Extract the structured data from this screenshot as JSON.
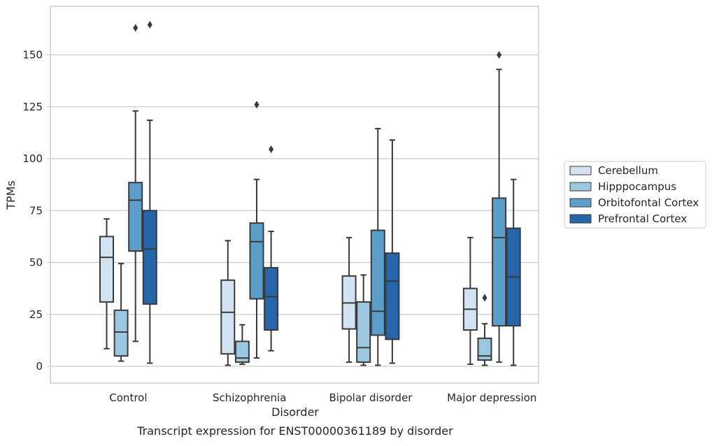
{
  "chart_data": {
    "type": "boxplot",
    "title": "",
    "caption": "Transcript expression for ENST00000361189 by disorder",
    "xlabel": "Disorder",
    "ylabel": "TPMs",
    "ylim": [
      -8,
      172
    ],
    "yticks": [
      0,
      25,
      50,
      75,
      100,
      125,
      150
    ],
    "grid": true,
    "legend_position": "right",
    "categories": [
      "Control",
      "Schizophrenia",
      "Bipolar disorder",
      "Major depression"
    ],
    "series": [
      {
        "name": "Cerebellum",
        "color": "#d4e3f2",
        "boxes": [
          {
            "whisker_low": 8.5,
            "q1": 31,
            "median": 52.5,
            "q3": 62.5,
            "whisker_high": 71,
            "outliers": []
          },
          {
            "whisker_low": 0.5,
            "q1": 6,
            "median": 26,
            "q3": 41.5,
            "whisker_high": 60.5,
            "outliers": []
          },
          {
            "whisker_low": 2,
            "q1": 18,
            "median": 30.5,
            "q3": 43.5,
            "whisker_high": 62,
            "outliers": []
          },
          {
            "whisker_low": 1,
            "q1": 17.5,
            "median": 27.5,
            "q3": 37.5,
            "whisker_high": 62,
            "outliers": []
          }
        ]
      },
      {
        "name": "Hipppocampus",
        "color": "#9ac8e0",
        "boxes": [
          {
            "whisker_low": 2.5,
            "q1": 5,
            "median": 16.5,
            "q3": 27,
            "whisker_high": 49.5,
            "outliers": []
          },
          {
            "whisker_low": 1,
            "q1": 2,
            "median": 4,
            "q3": 12,
            "whisker_high": 20,
            "outliers": []
          },
          {
            "whisker_low": 0.5,
            "q1": 2,
            "median": 9,
            "q3": 31,
            "whisker_high": 44,
            "outliers": []
          },
          {
            "whisker_low": 0.5,
            "q1": 3,
            "median": 5,
            "q3": 13.5,
            "whisker_high": 20.5,
            "outliers": [
              33
            ]
          }
        ]
      },
      {
        "name": "Orbitofontal Cortex",
        "color": "#5a9ec9",
        "boxes": [
          {
            "whisker_low": 12,
            "q1": 55.5,
            "median": 80,
            "q3": 88.5,
            "whisker_high": 123,
            "outliers": [
              163
            ]
          },
          {
            "whisker_low": 4,
            "q1": 32.5,
            "median": 60,
            "q3": 69,
            "whisker_high": 90,
            "outliers": [
              126
            ]
          },
          {
            "whisker_low": 0.5,
            "q1": 15,
            "median": 26.5,
            "q3": 65.5,
            "whisker_high": 114.5,
            "outliers": []
          },
          {
            "whisker_low": 2,
            "q1": 19.5,
            "median": 62,
            "q3": 81,
            "whisker_high": 143,
            "outliers": [
              150
            ]
          }
        ]
      },
      {
        "name": "Prefrontal Cortex",
        "color": "#2565a8",
        "boxes": [
          {
            "whisker_low": 1.5,
            "q1": 30,
            "median": 56.5,
            "q3": 75,
            "whisker_high": 118.5,
            "outliers": [
              164.5
            ]
          },
          {
            "whisker_low": 7.5,
            "q1": 17.5,
            "median": 33.5,
            "q3": 47.5,
            "whisker_high": 65,
            "outliers": [
              104.5
            ]
          },
          {
            "whisker_low": 1.5,
            "q1": 13,
            "median": 41,
            "q3": 54.5,
            "whisker_high": 109,
            "outliers": []
          },
          {
            "whisker_low": 0.5,
            "q1": 19.5,
            "median": 43,
            "q3": 66.5,
            "whisker_high": 90,
            "outliers": []
          }
        ]
      }
    ]
  }
}
